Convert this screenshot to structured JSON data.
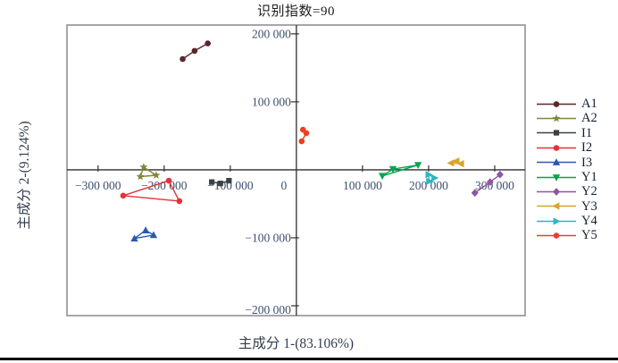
{
  "figure": {
    "title": "识别指数=90",
    "xlabel": "主成分 1-(83.106%)",
    "ylabel": "主成分 2-(9.124%)"
  },
  "chart_data": {
    "type": "scatter",
    "title": "识别指数=90",
    "xlabel": "主成分 1-(83.106%)",
    "ylabel": "主成分 2-(9.124%)",
    "xlim": [
      -347000,
      346000
    ],
    "ylim": [
      -214500,
      213000
    ],
    "grid": false,
    "legend_position": "right",
    "axis_style": "center-cross",
    "tick_label_color": "#3c4e6e",
    "axis_color": "#2f2f2f",
    "border_color": "#919191",
    "x_ticks": [
      {
        "v": -300000,
        "label": "−300 000"
      },
      {
        "v": -200000,
        "label": "−200 000"
      },
      {
        "v": -100000,
        "label": "−100 000"
      },
      {
        "v": 0,
        "label": "0"
      },
      {
        "v": 100000,
        "label": "100 000"
      },
      {
        "v": 200000,
        "label": "200 000"
      },
      {
        "v": 300000,
        "label": "300 000"
      }
    ],
    "y_ticks": [
      {
        "v": 200000,
        "label": "200 000"
      },
      {
        "v": 100000,
        "label": "100 000"
      },
      {
        "v": -100000,
        "label": "−100 000"
      },
      {
        "v": -200000,
        "label": "−200 000"
      }
    ],
    "series": [
      {
        "name": "A1",
        "color": "#5a262b",
        "marker": "circle",
        "closed": false,
        "points": [
          [
            -172000,
            163000
          ],
          [
            -154000,
            175000
          ],
          [
            -134000,
            186000
          ]
        ]
      },
      {
        "name": "A2",
        "color": "#82863b",
        "marker": "star",
        "closed": true,
        "points": [
          [
            -236000,
            -10000
          ],
          [
            -231000,
            4000
          ],
          [
            -212000,
            -8000
          ]
        ]
      },
      {
        "name": "I1",
        "color": "#3c4043",
        "marker": "square",
        "closed": false,
        "points": [
          [
            -128000,
            -18000
          ],
          [
            -115000,
            -20000
          ],
          [
            -102000,
            -16000
          ]
        ]
      },
      {
        "name": "I2",
        "color": "#e53238",
        "marker": "circle",
        "closed": true,
        "points": [
          [
            -262000,
            -38000
          ],
          [
            -193000,
            -16000
          ],
          [
            -177000,
            -46000
          ]
        ]
      },
      {
        "name": "I3",
        "color": "#2b59ac",
        "marker": "triangle-up",
        "closed": true,
        "points": [
          [
            -245000,
            -101000
          ],
          [
            -228000,
            -89000
          ],
          [
            -216000,
            -96000
          ]
        ]
      },
      {
        "name": "Y1",
        "color": "#08a551",
        "marker": "triangle-down",
        "closed": true,
        "points": [
          [
            130000,
            -9000
          ],
          [
            146000,
            1000
          ],
          [
            184000,
            7000
          ]
        ]
      },
      {
        "name": "Y2",
        "color": "#9055a2",
        "marker": "diamond",
        "closed": false,
        "points": [
          [
            270000,
            -34000
          ],
          [
            293000,
            -18000
          ],
          [
            308000,
            -7000
          ]
        ]
      },
      {
        "name": "Y3",
        "color": "#d6a52a",
        "marker": "triangle-left",
        "closed": true,
        "points": [
          [
            234000,
            10000
          ],
          [
            242000,
            13000
          ],
          [
            249000,
            9000
          ]
        ]
      },
      {
        "name": "Y4",
        "color": "#2ab6c5",
        "marker": "triangle-right",
        "closed": true,
        "points": [
          [
            200000,
            -7000
          ],
          [
            209000,
            -12000
          ],
          [
            201000,
            -17000
          ]
        ]
      },
      {
        "name": "Y5",
        "color": "#ee3f22",
        "marker": "circle",
        "closed": false,
        "points": [
          [
            10000,
            59000
          ],
          [
            15000,
            54000
          ],
          [
            8000,
            42000
          ]
        ]
      }
    ]
  }
}
